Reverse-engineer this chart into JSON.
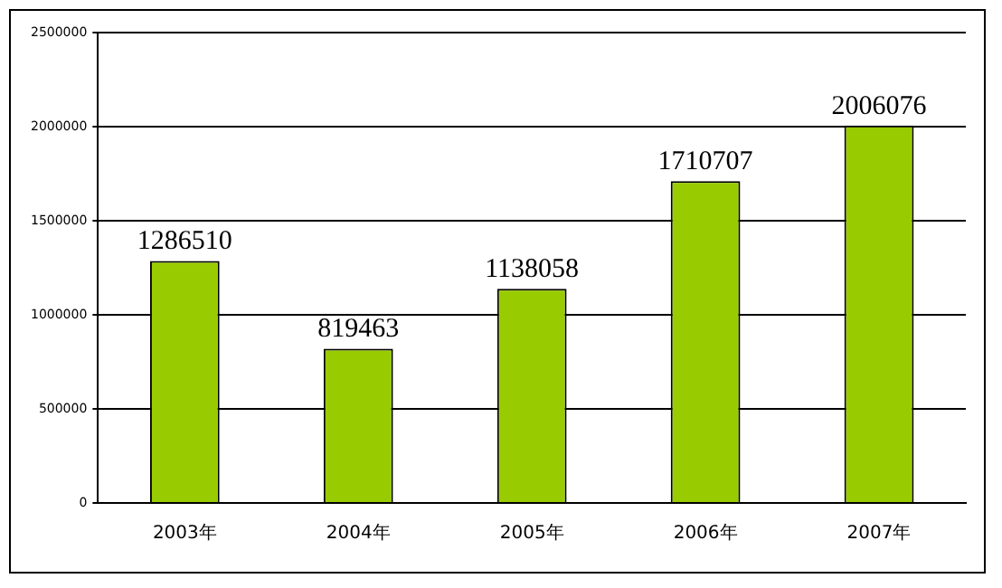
{
  "chart_data": {
    "type": "bar",
    "categories": [
      "2003年",
      "2004年",
      "2005年",
      "2006年",
      "2007年"
    ],
    "values": [
      1286510,
      819463,
      1138058,
      1710707,
      2006076
    ],
    "color": "#99cc00",
    "ylim": [
      0,
      2500000
    ],
    "yticks": [
      0,
      500000,
      1000000,
      1500000,
      2000000,
      2500000
    ],
    "grid": "y",
    "data_labels": true,
    "legend": false
  }
}
